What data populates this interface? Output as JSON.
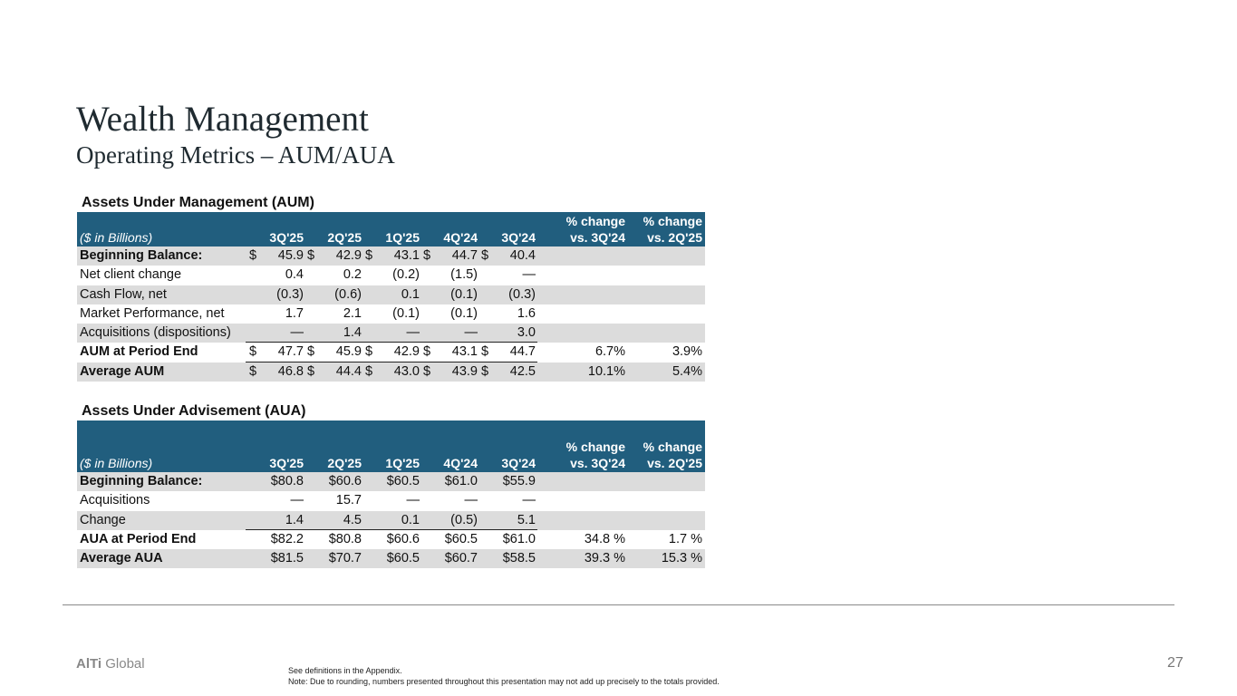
{
  "title": "Wealth Management",
  "subtitle": "Operating Metrics – AUM/AUA",
  "aum": {
    "section_title": "Assets Under Management (AUM)",
    "unit_label": "($ in Billions)",
    "periods": [
      "3Q'25",
      "2Q'25",
      "1Q'25",
      "4Q'24",
      "3Q'24"
    ],
    "pct_headers": [
      [
        "% change",
        "vs. 3Q'24"
      ],
      [
        "% change",
        "vs. 2Q'25"
      ]
    ],
    "rows": [
      {
        "label": "Beginning Balance:",
        "bold": true,
        "dollar": true,
        "values": [
          "45.9",
          "42.9",
          "43.1",
          "44.7",
          "40.4"
        ],
        "pcts": [
          "",
          ""
        ]
      },
      {
        "label": "Net client change",
        "bold": false,
        "dollar": false,
        "values": [
          "0.4",
          "0.2",
          "(0.2)",
          "(1.5)",
          "—"
        ],
        "pcts": [
          "",
          ""
        ]
      },
      {
        "label": "Cash Flow, net",
        "bold": false,
        "dollar": false,
        "values": [
          "(0.3)",
          "(0.6)",
          "0.1",
          "(0.1)",
          "(0.3)"
        ],
        "pcts": [
          "",
          ""
        ]
      },
      {
        "label": "Market Performance, net",
        "bold": false,
        "dollar": false,
        "values": [
          "1.7",
          "2.1",
          "(0.1)",
          "(0.1)",
          "1.6"
        ],
        "pcts": [
          "",
          ""
        ]
      },
      {
        "label": "Acquisitions (dispositions)",
        "bold": false,
        "dollar": false,
        "values": [
          "—",
          "1.4",
          "—",
          "—",
          "3.0"
        ],
        "pcts": [
          "",
          ""
        ]
      },
      {
        "label": "AUM at Period End",
        "bold": true,
        "dollar": true,
        "values": [
          "47.7",
          "45.9",
          "42.9",
          "43.1",
          "44.7"
        ],
        "pcts": [
          "6.7%",
          "3.9%"
        ]
      },
      {
        "label": "Average AUM",
        "bold": true,
        "dollar": true,
        "values": [
          "46.8",
          "44.4",
          "43.0",
          "43.9",
          "42.5"
        ],
        "pcts": [
          "10.1%",
          "5.4%"
        ]
      }
    ]
  },
  "aua": {
    "section_title": "Assets Under Advisement (AUA)",
    "unit_label": "($ in Billions)",
    "periods": [
      "3Q'25",
      "2Q'25",
      "1Q'25",
      "4Q'24",
      "3Q'24"
    ],
    "pct_headers": [
      [
        "% change",
        "vs. 3Q'24"
      ],
      [
        "% change",
        "vs. 2Q'25"
      ]
    ],
    "rows": [
      {
        "label": "Beginning Balance:",
        "bold": true,
        "values": [
          "$80.8",
          "$60.6",
          "$60.5",
          "$61.0",
          "$55.9"
        ],
        "pcts": [
          "",
          ""
        ]
      },
      {
        "label": "Acquisitions",
        "bold": false,
        "values": [
          "—",
          "15.7",
          "—",
          "—",
          "—"
        ],
        "pcts": [
          "",
          ""
        ]
      },
      {
        "label": "Change",
        "bold": false,
        "values": [
          "1.4",
          "4.5",
          "0.1",
          "(0.5)",
          "5.1"
        ],
        "pcts": [
          "",
          ""
        ]
      },
      {
        "label": "AUA at Period End",
        "bold": true,
        "values": [
          "$82.2",
          "$80.8",
          "$60.6",
          "$60.5",
          "$61.0"
        ],
        "pcts": [
          "34.8 %",
          "1.7 %"
        ]
      },
      {
        "label": "Average AUA",
        "bold": true,
        "values": [
          "$81.5",
          "$70.7",
          "$60.5",
          "$60.7",
          "$58.5"
        ],
        "pcts": [
          "39.3 %",
          "15.3 %"
        ]
      }
    ]
  },
  "footer": {
    "logo_bold": "AlTi",
    "logo_rest": " Global",
    "page_number": "27",
    "note1": "See definitions in the Appendix.",
    "note2": "Note: Due to rounding, numbers presented throughout this presentation may not add up precisely to the totals provided."
  }
}
